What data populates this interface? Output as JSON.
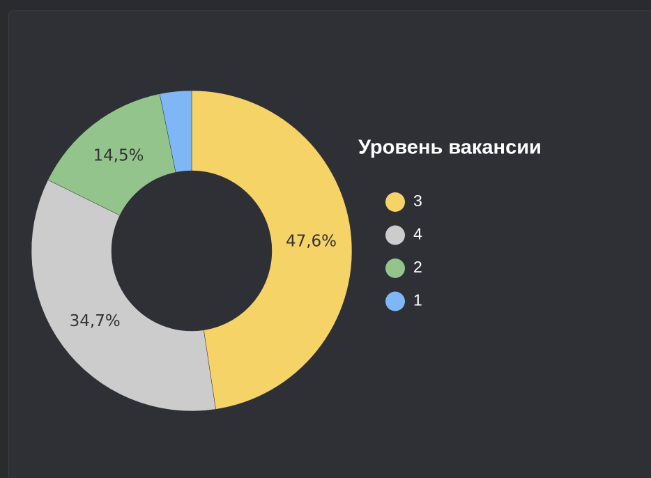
{
  "chart_data": {
    "type": "pie",
    "legend_title": "Уровень вакансии",
    "categories": [
      "3",
      "4",
      "2",
      "1"
    ],
    "values": [
      47.6,
      34.7,
      14.5,
      3.2
    ],
    "value_labels": [
      "47,6%",
      "34,7%",
      "14,5%",
      null
    ],
    "colors": [
      "#f5d367",
      "#cccccc",
      "#93c48b",
      "#7eb6f6"
    ],
    "donut": true,
    "legend": "right"
  }
}
